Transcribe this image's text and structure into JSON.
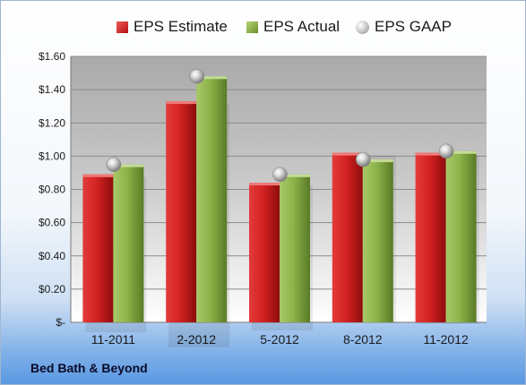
{
  "brand": "Bed Bath & Beyond",
  "legend": [
    {
      "name": "EPS Estimate",
      "icon": "red-square-icon"
    },
    {
      "name": "EPS Actual",
      "icon": "green-square-icon"
    },
    {
      "name": "EPS GAAP",
      "icon": "gray-sphere-icon"
    }
  ],
  "colors": {
    "estimate": "#cc1f1f",
    "actual": "#8cb84a",
    "gaap": "#b8b8b8"
  },
  "chart_data": {
    "type": "bar",
    "categories": [
      "11-2011",
      "2-2012",
      "5-2012",
      "8-2012",
      "11-2012"
    ],
    "series": [
      {
        "name": "EPS Estimate",
        "type": "bar",
        "values": [
          0.89,
          1.33,
          0.84,
          1.02,
          1.02
        ]
      },
      {
        "name": "EPS Actual",
        "type": "bar",
        "values": [
          0.95,
          1.48,
          0.89,
          0.98,
          1.03
        ]
      },
      {
        "name": "EPS GAAP",
        "type": "scatter",
        "values": [
          0.95,
          1.48,
          0.89,
          0.98,
          1.03
        ]
      }
    ],
    "ylim": [
      0,
      1.6
    ],
    "yticks": [
      0,
      0.2,
      0.4,
      0.6,
      0.8,
      1.0,
      1.2,
      1.4,
      1.6
    ],
    "ytick_labels": [
      "$-",
      "$0.20",
      "$0.40",
      "$0.60",
      "$0.80",
      "$1.00",
      "$1.20",
      "$1.40",
      "$1.60"
    ],
    "grid": true,
    "legend_position": "top"
  }
}
